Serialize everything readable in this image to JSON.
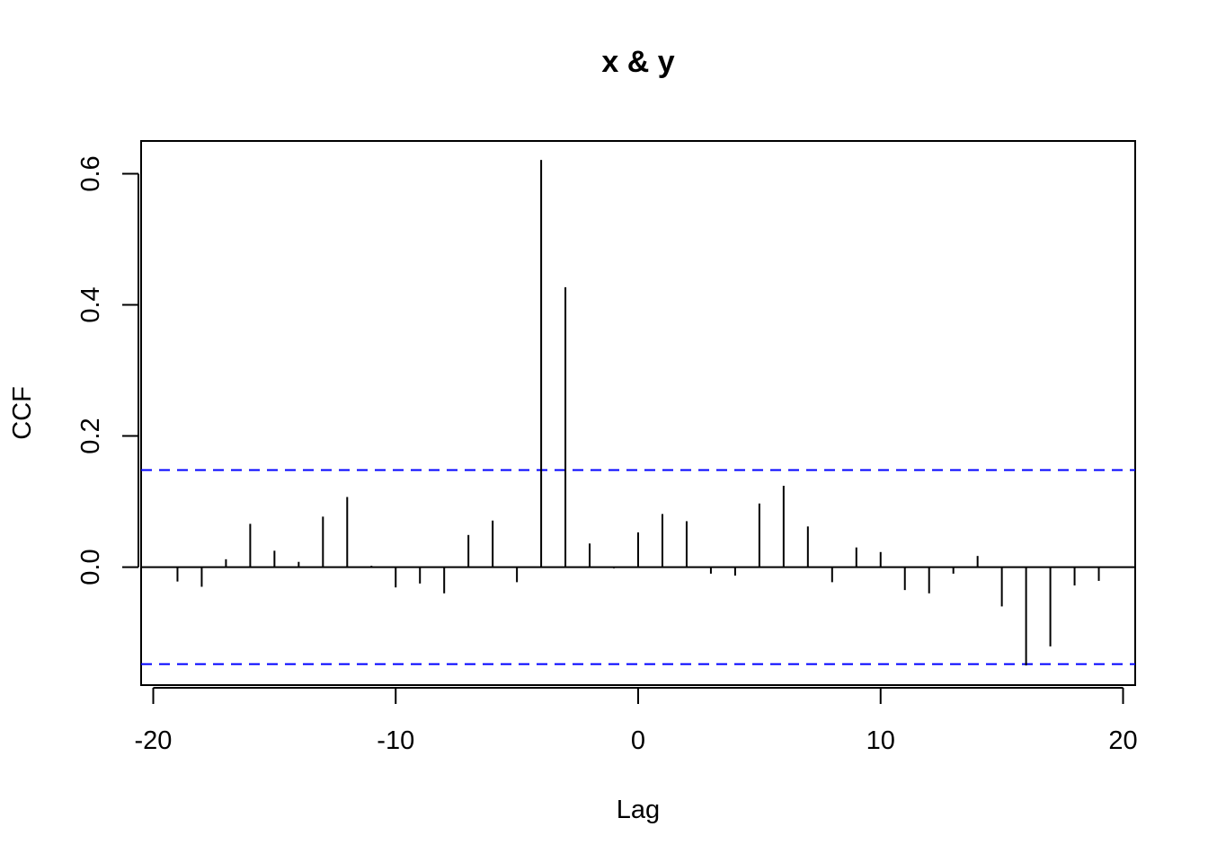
{
  "chart_data": {
    "type": "bar",
    "title": "x & y",
    "xlabel": "Lag",
    "ylabel": "CCF",
    "xlim": [
      -20.5,
      20.5
    ],
    "ylim": [
      -0.18,
      0.65
    ],
    "x_ticks": [
      "-20",
      "-10",
      "0",
      "10",
      "20"
    ],
    "y_ticks": [
      "0.0",
      "0.2",
      "0.4",
      "0.6"
    ],
    "lags": [
      -19,
      -18,
      -17,
      -16,
      -15,
      -14,
      -13,
      -12,
      -11,
      -10,
      -9,
      -8,
      -7,
      -6,
      -5,
      -4,
      -3,
      -2,
      -1,
      0,
      1,
      2,
      3,
      4,
      5,
      6,
      7,
      8,
      9,
      10,
      11,
      12,
      13,
      14,
      15,
      16,
      17,
      18,
      19
    ],
    "values": [
      -0.022,
      -0.03,
      0.012,
      0.066,
      0.025,
      0.008,
      0.077,
      0.107,
      0.002,
      -0.031,
      -0.025,
      -0.04,
      0.049,
      0.071,
      -0.023,
      0.621,
      0.427,
      0.036,
      -0.002,
      0.053,
      0.081,
      0.07,
      -0.01,
      -0.013,
      0.097,
      0.124,
      0.062,
      -0.023,
      0.03,
      0.023,
      -0.035,
      -0.04,
      -0.01,
      0.017,
      -0.06,
      -0.15,
      -0.121,
      -0.028,
      -0.021
    ],
    "confidence_bound": 0.148,
    "zero_line": 0,
    "colors": {
      "bars": "#000000",
      "confidence_lines": "#0000ff",
      "frame": "#000000"
    },
    "grid": false,
    "legend": "none"
  }
}
